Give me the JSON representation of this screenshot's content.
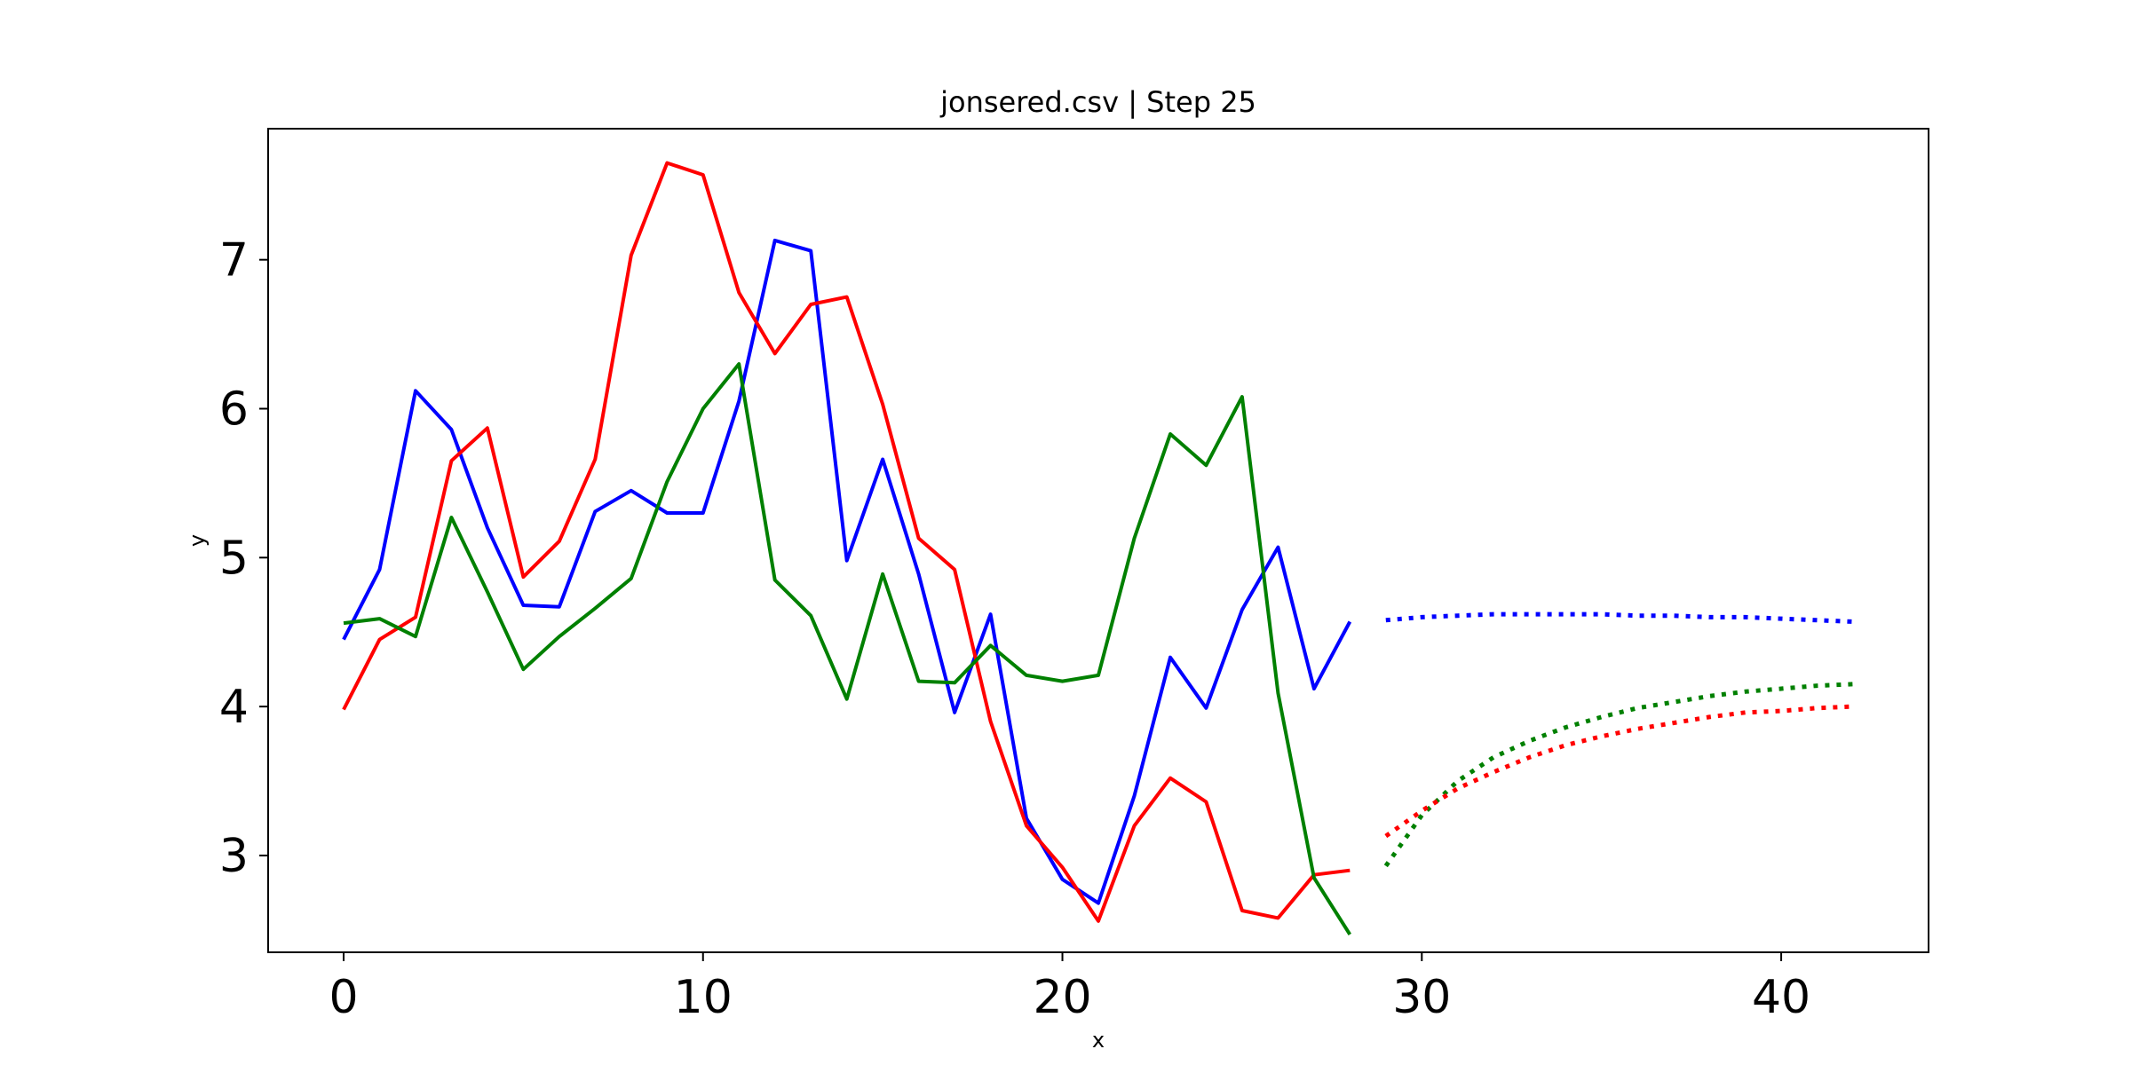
{
  "chart_data": {
    "type": "line",
    "title": "jonsered.csv | Step 25",
    "xlabel": "x",
    "ylabel": "y",
    "xlim": [
      -2.1,
      44.1
    ],
    "ylim": [
      2.35,
      7.88
    ],
    "xticks": [
      0,
      10,
      20,
      30,
      40
    ],
    "yticks": [
      3,
      4,
      5,
      6,
      7
    ],
    "grid": false,
    "legend": false,
    "series": [
      {
        "color": "#0000ff",
        "style": "solid",
        "x": [
          0,
          1,
          2,
          3,
          4,
          5,
          6,
          7,
          8,
          9,
          10,
          11,
          12,
          13,
          14,
          15,
          16,
          17,
          18,
          19,
          20,
          21,
          22,
          23,
          24,
          25,
          26,
          27,
          28
        ],
        "y": [
          4.45,
          4.92,
          6.12,
          5.86,
          5.2,
          4.68,
          4.67,
          5.31,
          5.45,
          5.3,
          5.3,
          6.05,
          7.13,
          7.06,
          4.98,
          5.66,
          4.89,
          3.96,
          4.62,
          3.25,
          2.84,
          2.68,
          3.4,
          4.33,
          3.99,
          4.65,
          5.07,
          4.12,
          4.57
        ]
      },
      {
        "color": "#ff0000",
        "style": "solid",
        "x": [
          0,
          1,
          2,
          3,
          4,
          5,
          6,
          7,
          8,
          9,
          10,
          11,
          12,
          13,
          14,
          15,
          16,
          17,
          18,
          19,
          20,
          21,
          22,
          23,
          24,
          25,
          26,
          27,
          28
        ],
        "y": [
          3.98,
          4.45,
          4.6,
          5.65,
          5.87,
          4.87,
          5.11,
          5.66,
          7.03,
          7.65,
          7.57,
          6.78,
          6.37,
          6.7,
          6.75,
          6.03,
          5.13,
          4.92,
          3.9,
          3.2,
          2.92,
          2.56,
          3.2,
          3.52,
          3.36,
          2.63,
          2.58,
          2.87,
          2.9
        ]
      },
      {
        "color": "#008000",
        "style": "solid",
        "x": [
          0,
          1,
          2,
          3,
          4,
          5,
          6,
          7,
          8,
          9,
          10,
          11,
          12,
          13,
          14,
          15,
          16,
          17,
          18,
          19,
          20,
          21,
          22,
          23,
          24,
          25,
          26,
          27,
          28
        ],
        "y": [
          4.56,
          4.59,
          4.47,
          5.27,
          4.77,
          4.25,
          4.47,
          4.66,
          4.86,
          5.51,
          6.0,
          6.3,
          4.85,
          4.61,
          4.05,
          4.89,
          4.17,
          4.16,
          4.41,
          4.21,
          4.17,
          4.21,
          5.13,
          5.83,
          5.62,
          6.08,
          4.09,
          2.85,
          2.47
        ]
      },
      {
        "color": "#0000ff",
        "style": "dotted",
        "x": [
          29,
          30,
          31,
          32,
          33,
          34,
          35,
          36,
          37,
          38,
          39,
          40,
          41,
          42
        ],
        "y": [
          4.58,
          4.6,
          4.61,
          4.62,
          4.62,
          4.62,
          4.62,
          4.61,
          4.61,
          4.6,
          4.6,
          4.59,
          4.58,
          4.57
        ]
      },
      {
        "color": "#008000",
        "style": "dotted",
        "x": [
          29,
          30,
          31,
          32,
          33,
          34,
          35,
          36,
          37,
          38,
          39,
          40,
          41,
          42
        ],
        "y": [
          2.93,
          3.27,
          3.5,
          3.66,
          3.77,
          3.86,
          3.93,
          3.99,
          4.03,
          4.07,
          4.1,
          4.12,
          4.14,
          4.15
        ]
      },
      {
        "color": "#ff0000",
        "style": "dotted",
        "x": [
          29,
          30,
          31,
          32,
          33,
          34,
          35,
          36,
          37,
          38,
          39,
          40,
          41,
          42
        ],
        "y": [
          3.13,
          3.3,
          3.45,
          3.56,
          3.66,
          3.74,
          3.8,
          3.85,
          3.89,
          3.93,
          3.96,
          3.97,
          3.99,
          4.0
        ]
      }
    ]
  }
}
